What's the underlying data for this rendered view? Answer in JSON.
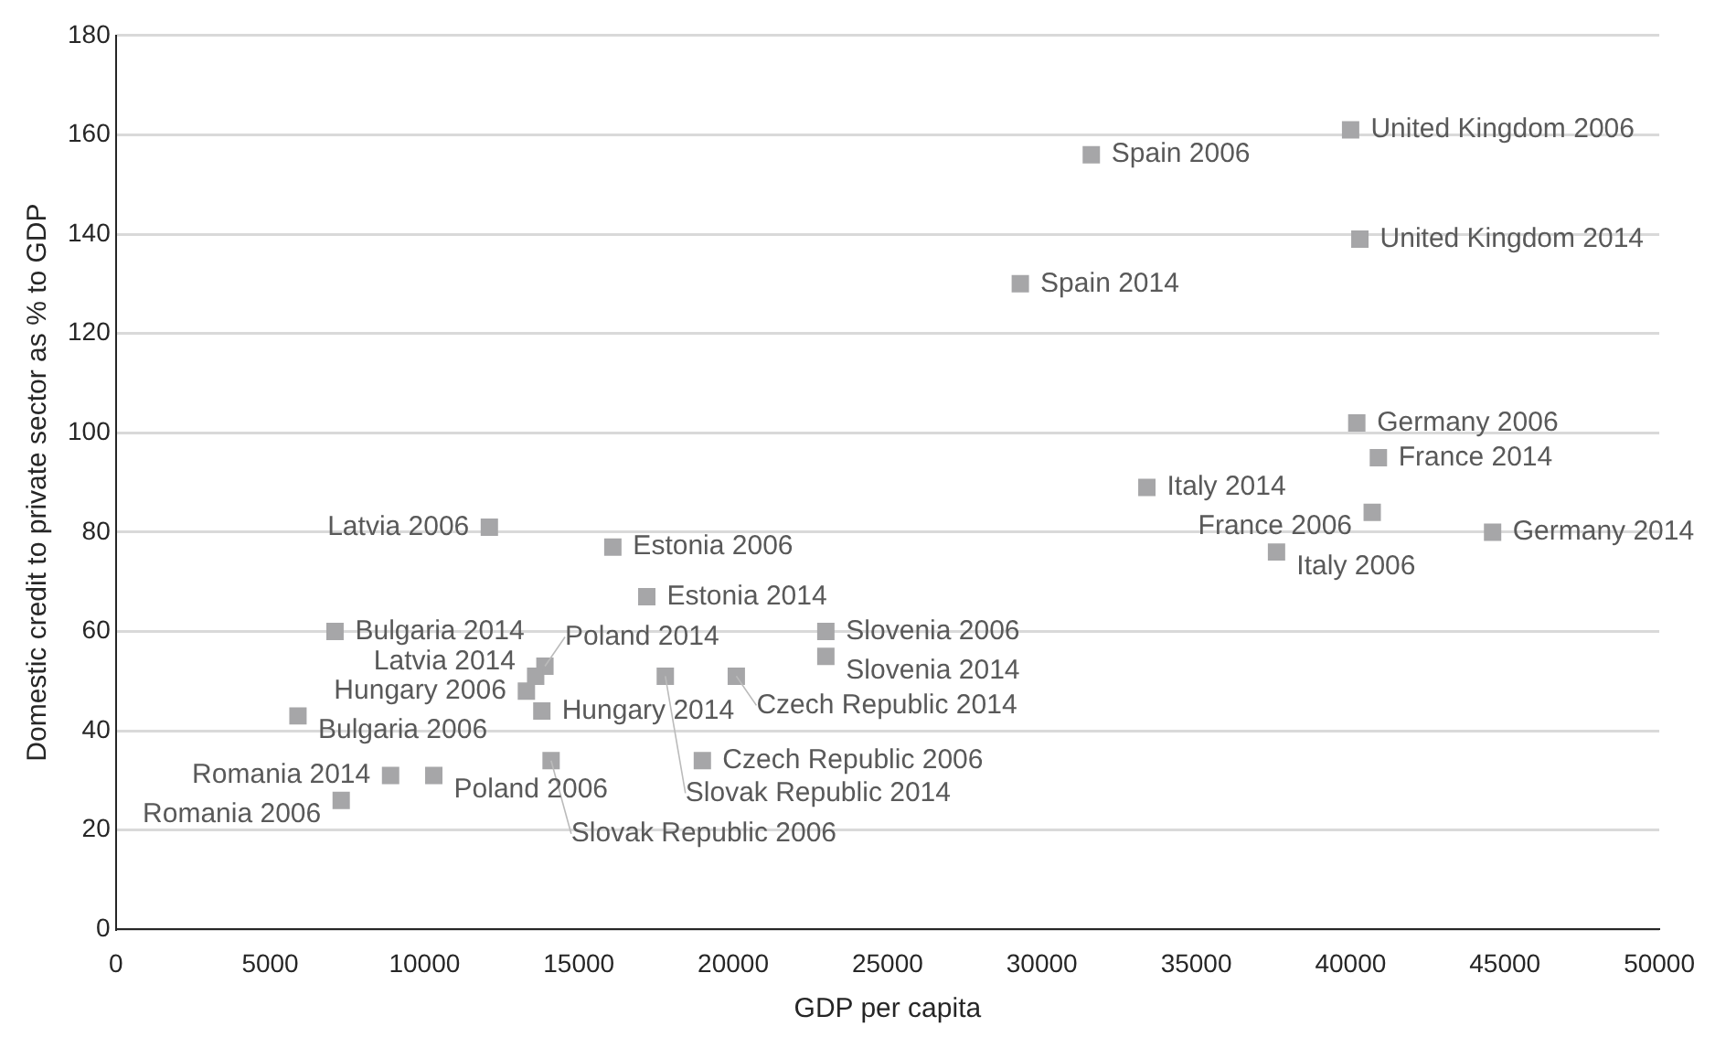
{
  "chart_data": {
    "type": "scatter",
    "xlabel": "GDP per capita",
    "ylabel": "Domestic credit to private sector as % to GDP",
    "series": [
      {
        "color": "#a6a6a8",
        "x": [
          40000,
          31600,
          40300,
          29300,
          40200,
          40900,
          33400,
          40700,
          44600,
          37600,
          12100,
          16100,
          17200,
          7100,
          23000,
          23000,
          13900,
          13600,
          13300,
          13800,
          17800,
          20100,
          5900,
          14100,
          19000,
          8900,
          10300,
          7300
        ],
        "values": [
          161,
          156,
          139,
          130,
          102,
          95,
          89,
          84,
          80,
          76,
          81,
          77,
          67,
          60,
          60,
          55,
          53,
          51,
          48,
          44,
          51,
          51,
          43,
          34,
          34,
          31,
          31,
          26
        ]
      }
    ],
    "annotations": [
      {
        "text": "United Kingdom 2006",
        "x": 40000,
        "y": 161
      },
      {
        "text": "Spain 2006",
        "x": 31600,
        "y": 156
      },
      {
        "text": "United Kingdom 2014",
        "x": 40300,
        "y": 139
      },
      {
        "text": "Spain 2014",
        "x": 29300,
        "y": 130
      },
      {
        "text": "Germany 2006",
        "x": 40200,
        "y": 102
      },
      {
        "text": "France 2014",
        "x": 40900,
        "y": 95
      },
      {
        "text": "Italy 2014",
        "x": 33400,
        "y": 89
      },
      {
        "text": "France 2006",
        "x": 40700,
        "y": 84
      },
      {
        "text": "Germany 2014",
        "x": 44600,
        "y": 80
      },
      {
        "text": "Italy 2006",
        "x": 37600,
        "y": 76
      },
      {
        "text": "Latvia 2006",
        "x": 12100,
        "y": 81
      },
      {
        "text": "Estonia 2006",
        "x": 16100,
        "y": 77
      },
      {
        "text": "Estonia 2014",
        "x": 17200,
        "y": 67
      },
      {
        "text": "Bulgaria 2014",
        "x": 7100,
        "y": 60
      },
      {
        "text": "Slovenia 2006",
        "x": 23000,
        "y": 60
      },
      {
        "text": "Slovenia 2014",
        "x": 23000,
        "y": 55
      },
      {
        "text": "Poland 2014",
        "x": 13900,
        "y": 53
      },
      {
        "text": "Latvia 2014",
        "x": 13600,
        "y": 51
      },
      {
        "text": "Hungary 2006",
        "x": 13300,
        "y": 48
      },
      {
        "text": "Hungary 2014",
        "x": 13800,
        "y": 44
      },
      {
        "text": "Slovak Republic 2014",
        "x": 17800,
        "y": 51
      },
      {
        "text": "Czech Republic 2014",
        "x": 20100,
        "y": 51
      },
      {
        "text": "Bulgaria 2006",
        "x": 5900,
        "y": 43
      },
      {
        "text": "Slovak Republic 2006",
        "x": 14100,
        "y": 34
      },
      {
        "text": "Czech Republic 2006",
        "x": 19000,
        "y": 34
      },
      {
        "text": "Romania 2014",
        "x": 8900,
        "y": 31
      },
      {
        "text": "Poland 2006",
        "x": 10300,
        "y": 31
      },
      {
        "text": "Romania 2006",
        "x": 7300,
        "y": 26
      }
    ],
    "xlim": [
      0,
      50000
    ],
    "xticks": [
      0,
      5000,
      10000,
      15000,
      20000,
      25000,
      30000,
      35000,
      40000,
      45000,
      50000
    ],
    "ylim": [
      0,
      180
    ],
    "yticks": [
      0,
      20,
      40,
      60,
      80,
      100,
      120,
      140,
      160,
      180
    ],
    "grid": "y",
    "legend": false,
    "marker": "square"
  }
}
